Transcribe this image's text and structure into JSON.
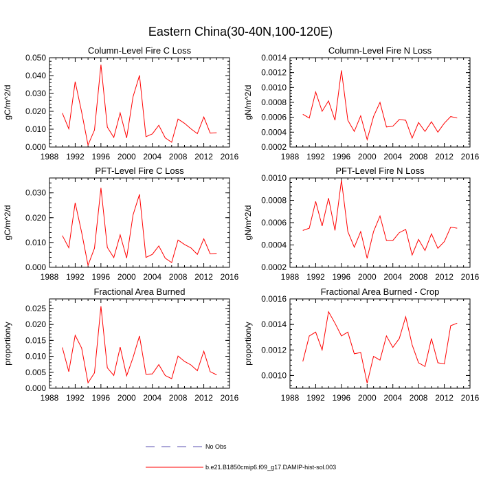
{
  "title": "Eastern China(30-40N,100-120E)",
  "colors": {
    "series": "#ff0000",
    "obs": "#5a4fb0",
    "axis": "#000000"
  },
  "chart_data": [
    {
      "type": "line",
      "title": "Column-Level Fire C Loss",
      "ylabel": "gC/m^2/d",
      "xlim": [
        1988,
        2016
      ],
      "ylim": [
        0.0,
        0.05
      ],
      "xticks": [
        "1988",
        "1992",
        "1996",
        "2000",
        "2004",
        "2008",
        "2012",
        "2016"
      ],
      "yticks": [
        "0.000",
        "0.010",
        "0.020",
        "0.030",
        "0.040",
        "0.050"
      ],
      "x": [
        1990,
        1991,
        1992,
        1993,
        1994,
        1995,
        1996,
        1997,
        1998,
        1999,
        2000,
        2001,
        2002,
        2003,
        2004,
        2005,
        2006,
        2007,
        2008,
        2009,
        2010,
        2011,
        2012,
        2013,
        2014
      ],
      "series": [
        {
          "name": "b.e21.B1850cmip6.f09_g17.DAMIP-hist-sol.003",
          "values": [
            0.019,
            0.0102,
            0.0366,
            0.0196,
            0.0011,
            0.0095,
            0.0461,
            0.0112,
            0.0054,
            0.0191,
            0.0051,
            0.0281,
            0.0401,
            0.0058,
            0.0074,
            0.0122,
            0.0052,
            0.0027,
            0.0157,
            0.0133,
            0.0102,
            0.0075,
            0.0168,
            0.0078,
            0.008
          ]
        }
      ]
    },
    {
      "type": "line",
      "title": "Column-Level Fire N Loss",
      "ylabel": "gN/m^2/d",
      "xlim": [
        1988,
        2016
      ],
      "ylim": [
        0.0002,
        0.0014
      ],
      "xticks": [
        "1988",
        "1992",
        "1996",
        "2000",
        "2004",
        "2008",
        "2012",
        "2016"
      ],
      "yticks": [
        "0.0002",
        "0.0004",
        "0.0006",
        "0.0008",
        "0.0010",
        "0.0012",
        "0.0014"
      ],
      "x": [
        1990,
        1991,
        1992,
        1993,
        1994,
        1995,
        1996,
        1997,
        1998,
        1999,
        2000,
        2001,
        2002,
        2003,
        2004,
        2005,
        2006,
        2007,
        2008,
        2009,
        2010,
        2011,
        2012,
        2013,
        2014
      ],
      "series": [
        {
          "name": "b.e21.B1850cmip6.f09_g17.DAMIP-hist-sol.003",
          "values": [
            0.00064,
            0.00059,
            0.00094,
            0.00068,
            0.00082,
            0.00056,
            0.00123,
            0.00056,
            0.00041,
            0.00062,
            0.0003,
            0.00061,
            0.0008,
            0.00047,
            0.00048,
            0.00057,
            0.00056,
            0.00032,
            0.00053,
            0.00041,
            0.00054,
            0.0004,
            0.00052,
            0.00061,
            0.00059
          ]
        }
      ]
    },
    {
      "type": "line",
      "title": "PFT-Level Fire C Loss",
      "ylabel": "gC/m^2/d",
      "xlim": [
        1988,
        2016
      ],
      "ylim": [
        0.0,
        0.036
      ],
      "xticks": [
        "1988",
        "1992",
        "1996",
        "2000",
        "2004",
        "2008",
        "2012",
        "2016"
      ],
      "yticks": [
        "0.000",
        "0.010",
        "0.020",
        "0.030"
      ],
      "x": [
        1990,
        1991,
        1992,
        1993,
        1994,
        1995,
        1996,
        1997,
        1998,
        1999,
        2000,
        2001,
        2002,
        2003,
        2004,
        2005,
        2006,
        2007,
        2008,
        2009,
        2010,
        2011,
        2012,
        2013,
        2014
      ],
      "series": [
        {
          "name": "b.e21.B1850cmip6.f09_g17.DAMIP-hist-sol.003",
          "values": [
            0.0128,
            0.0079,
            0.026,
            0.0141,
            0.0008,
            0.0077,
            0.032,
            0.008,
            0.0039,
            0.0131,
            0.0037,
            0.0211,
            0.0294,
            0.004,
            0.0052,
            0.0086,
            0.0037,
            0.0019,
            0.011,
            0.0092,
            0.0078,
            0.0052,
            0.0115,
            0.0054,
            0.0056
          ]
        }
      ]
    },
    {
      "type": "line",
      "title": "PFT-Level Fire N Loss",
      "ylabel": "gN/m^2/d",
      "xlim": [
        1988,
        2016
      ],
      "ylim": [
        0.0002,
        0.001
      ],
      "xticks": [
        "1988",
        "1992",
        "1996",
        "2000",
        "2004",
        "2008",
        "2012",
        "2016"
      ],
      "yticks": [
        "0.0002",
        "0.0004",
        "0.0006",
        "0.0008",
        "0.0010"
      ],
      "x": [
        1990,
        1991,
        1992,
        1993,
        1994,
        1995,
        1996,
        1997,
        1998,
        1999,
        2000,
        2001,
        2002,
        2003,
        2004,
        2005,
        2006,
        2007,
        2008,
        2009,
        2010,
        2011,
        2012,
        2013,
        2014
      ],
      "series": [
        {
          "name": "b.e21.B1850cmip6.f09_g17.DAMIP-hist-sol.003",
          "values": [
            0.00053,
            0.00055,
            0.00079,
            0.00057,
            0.00082,
            0.00053,
            0.00098,
            0.00052,
            0.00038,
            0.00052,
            0.00028,
            0.00052,
            0.00066,
            0.00044,
            0.00044,
            0.00051,
            0.00054,
            0.00031,
            0.00045,
            0.00035,
            0.0005,
            0.00037,
            0.00043,
            0.00056,
            0.00055
          ]
        }
      ]
    },
    {
      "type": "line",
      "title": "Fractional Area Burned",
      "ylabel": "proportion/y",
      "xlim": [
        1988,
        2016
      ],
      "ylim": [
        0.0,
        0.028
      ],
      "xticks": [
        "1988",
        "1992",
        "1996",
        "2000",
        "2004",
        "2008",
        "2012",
        "2016"
      ],
      "yticks": [
        "0.000",
        "0.005",
        "0.010",
        "0.015",
        "0.020",
        "0.025"
      ],
      "x": [
        1990,
        1991,
        1992,
        1993,
        1994,
        1995,
        1996,
        1997,
        1998,
        1999,
        2000,
        2001,
        2002,
        2003,
        2004,
        2005,
        2006,
        2007,
        2008,
        2009,
        2010,
        2011,
        2012,
        2013,
        2014
      ],
      "series": [
        {
          "name": "b.e21.B1850cmip6.f09_g17.DAMIP-hist-sol.003",
          "values": [
            0.0128,
            0.0052,
            0.0166,
            0.0126,
            0.0017,
            0.0048,
            0.0257,
            0.0064,
            0.004,
            0.0129,
            0.0039,
            0.0096,
            0.0164,
            0.0044,
            0.0045,
            0.0074,
            0.004,
            0.003,
            0.0101,
            0.0084,
            0.0073,
            0.0055,
            0.0116,
            0.0052,
            0.0042
          ]
        }
      ]
    },
    {
      "type": "line",
      "title": "Fractional Area Burned - Crop",
      "ylabel": "proportion/y",
      "xlim": [
        1988,
        2016
      ],
      "ylim": [
        0.0009,
        0.0016
      ],
      "xticks": [
        "1988",
        "1992",
        "1996",
        "2000",
        "2004",
        "2008",
        "2012",
        "2016"
      ],
      "yticks": [
        "0.0010",
        "0.0012",
        "0.0014",
        "0.0016"
      ],
      "x": [
        1990,
        1991,
        1992,
        1993,
        1994,
        1995,
        1996,
        1997,
        1998,
        1999,
        2000,
        2001,
        2002,
        2003,
        2004,
        2005,
        2006,
        2007,
        2008,
        2009,
        2010,
        2011,
        2012,
        2013,
        2014
      ],
      "series": [
        {
          "name": "b.e21.B1850cmip6.f09_g17.DAMIP-hist-sol.003",
          "values": [
            0.00111,
            0.00131,
            0.00134,
            0.0012,
            0.0015,
            0.00141,
            0.00131,
            0.00134,
            0.00117,
            0.00118,
            0.00094,
            0.00115,
            0.00112,
            0.00131,
            0.00122,
            0.00129,
            0.00146,
            0.00124,
            0.0011,
            0.00107,
            0.00129,
            0.0011,
            0.00109,
            0.00139,
            0.00141
          ]
        }
      ]
    }
  ],
  "legend": [
    {
      "label": "No Obs",
      "style": "dashed"
    },
    {
      "label": "b.e21.B1850cmip6.f09_g17.DAMIP-hist-sol.003",
      "style": "solid"
    }
  ]
}
